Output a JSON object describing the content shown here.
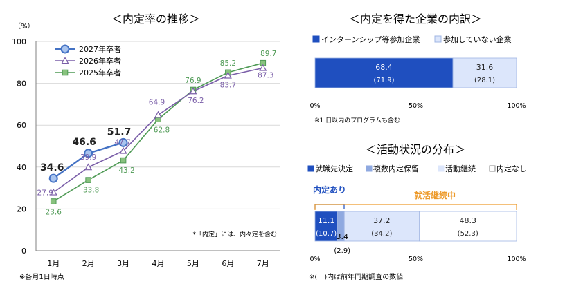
{
  "left_chart": {
    "title": "＜内定率の推移＞",
    "y_unit": "（%）",
    "note": "*「内定」には、内々定を含む",
    "footnote": "※各月1日時点"
  },
  "top_right": {
    "title": "＜内定を得た企業の内訳＞",
    "note": "※1 日以内のプログラムも含む"
  },
  "bottom_right": {
    "title": "＜活動状況の分布＞",
    "bracket_naitei": "内定あり",
    "bracket_katsudo": "就活継続中",
    "footnote": "※(　)内は前年同期調査の数値"
  },
  "colors": {
    "s2027": "#4472c4",
    "s2027_fill": "#a9c4ee",
    "s2026": "#7a5ea8",
    "s2025": "#4f9a55",
    "s2025_fill": "#88c27e",
    "dark_blue": "#1f4fbf",
    "mid_blue": "#8fa9e0",
    "light_blue": "#dce6fb",
    "orange": "#ed9a2a",
    "grid": "#d9d9d9",
    "axis": "#808080"
  },
  "chart_data": [
    {
      "type": "line",
      "title": "＜内定率の推移＞",
      "ylabel": "（%）",
      "ylim": [
        0,
        100
      ],
      "yticks": [
        0,
        20,
        40,
        60,
        80,
        100
      ],
      "categories": [
        "1月",
        "2月",
        "3月",
        "4月",
        "5月",
        "6月",
        "7月"
      ],
      "series": [
        {
          "name": "2027年卒者",
          "values": [
            34.6,
            46.6,
            51.7,
            null,
            null,
            null,
            null
          ],
          "labels": [
            "34.6",
            "46.6",
            "51.7",
            "",
            "",
            "",
            ""
          ]
        },
        {
          "name": "2026年卒者",
          "values": [
            27.9,
            39.9,
            47.7,
            64.9,
            76.2,
            83.7,
            87.3
          ],
          "labels": [
            "27.9",
            "39.9",
            "47.7",
            "64.9",
            "76.2",
            "83.7",
            "87.3"
          ]
        },
        {
          "name": "2025年卒者",
          "values": [
            23.6,
            33.8,
            43.2,
            62.8,
            76.9,
            85.2,
            89.7
          ],
          "labels": [
            "23.6",
            "33.8",
            "43.2",
            "62.8",
            "76.9",
            "85.2",
            "89.7"
          ]
        }
      ]
    },
    {
      "type": "bar",
      "orientation": "horizontal-stacked",
      "title": "＜内定を得た企業の内訳＞",
      "legend": [
        "インターンシップ等参加企業",
        "参加していない企業"
      ],
      "values": [
        68.4,
        31.6
      ],
      "prev_values": [
        71.9,
        28.1
      ],
      "labels": [
        "68.4",
        "31.6"
      ],
      "prev_labels": [
        "(71.9)",
        "(28.1)"
      ],
      "xticks": [
        "0%",
        "50%",
        "100%"
      ]
    },
    {
      "type": "bar",
      "orientation": "horizontal-stacked",
      "title": "＜活動状況の分布＞",
      "legend": [
        "就職先決定",
        "複数内定保留",
        "活動継続",
        "内定なし"
      ],
      "values": [
        11.1,
        3.4,
        37.2,
        48.3
      ],
      "prev_values": [
        10.7,
        2.9,
        34.2,
        52.3
      ],
      "labels": [
        "11.1",
        "3.4",
        "37.2",
        "48.3"
      ],
      "prev_labels": [
        "(10.7)",
        "(2.9)",
        "(34.2)",
        "(52.3)"
      ],
      "xticks": [
        "0%",
        "50%",
        "100%"
      ]
    }
  ]
}
